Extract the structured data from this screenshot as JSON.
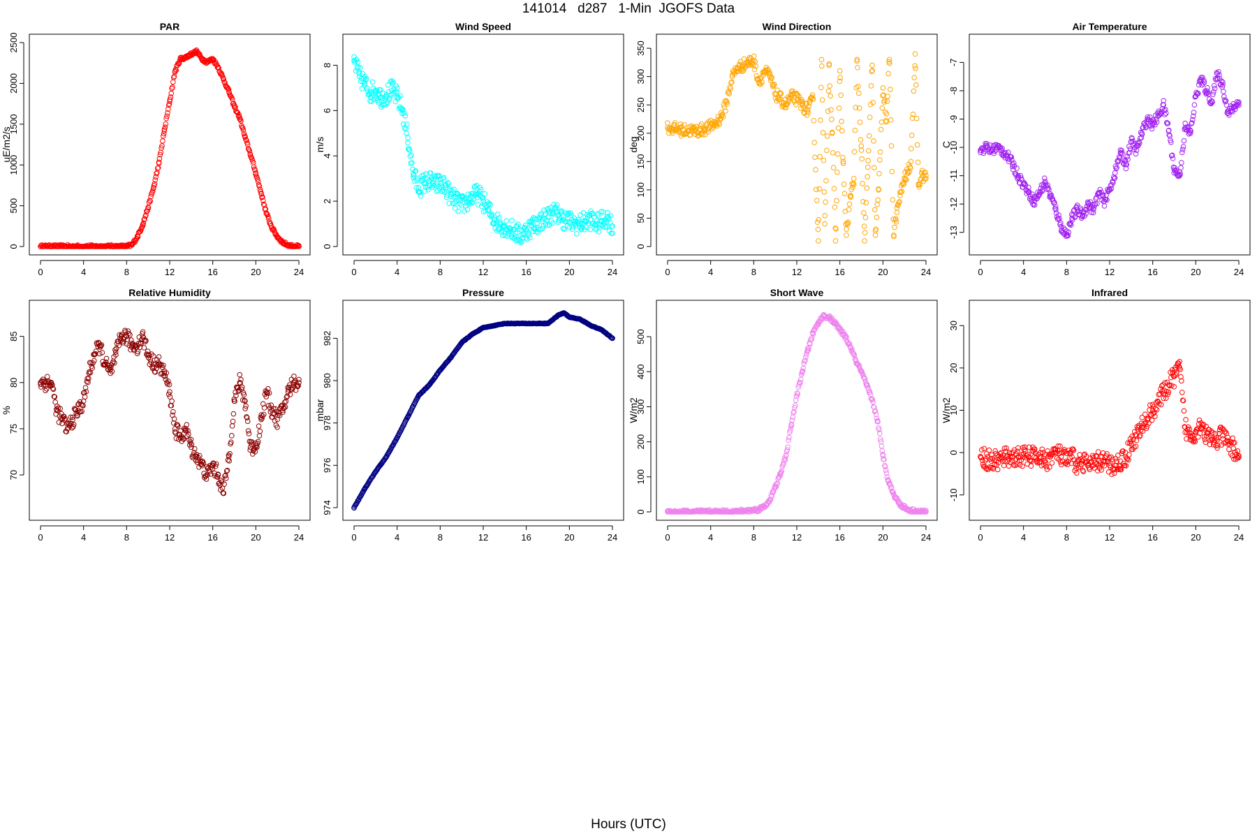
{
  "figure": {
    "title": "141014   d287   1-Min  JGOFS Data",
    "xlabel": "Hours (UTC)"
  },
  "chart_data": [
    {
      "type": "scatter",
      "title": "PAR",
      "ylabel": "uE/m2/s",
      "color": "#ff0000",
      "xlim": [
        0,
        24
      ],
      "ylim": [
        0,
        2500
      ],
      "xticks": [
        0,
        4,
        8,
        12,
        16,
        20,
        24
      ],
      "yticks": [
        0,
        500,
        1000,
        1500,
        2000,
        2500
      ],
      "series": [
        {
          "x": [
            0,
            2,
            4,
            6,
            8,
            8.5,
            9,
            9.5,
            10,
            10.5,
            11,
            11.5,
            12,
            12.5,
            13,
            13.5,
            14,
            14.5,
            15,
            15.5,
            16,
            16.5,
            17,
            17.5,
            18,
            18.5,
            19,
            19.5,
            20,
            20.5,
            21,
            21.5,
            22,
            22.5,
            23,
            23.5,
            24
          ],
          "y": [
            0,
            0,
            0,
            0,
            0,
            20,
            120,
            270,
            480,
            720,
            1020,
            1420,
            1780,
            2150,
            2300,
            2320,
            2360,
            2390,
            2300,
            2260,
            2300,
            2200,
            2050,
            1900,
            1720,
            1580,
            1340,
            1130,
            900,
            650,
            400,
            230,
            120,
            50,
            15,
            2,
            0
          ]
        }
      ]
    },
    {
      "type": "scatter",
      "title": "Wind Speed",
      "ylabel": "m/s",
      "color": "#00ffff",
      "xlim": [
        0,
        24
      ],
      "ylim": [
        0,
        9
      ],
      "xticks": [
        0,
        4,
        8,
        12,
        16,
        20,
        24
      ],
      "yticks": [
        0,
        2,
        4,
        6,
        8
      ],
      "series": [
        {
          "x": [
            0,
            0.5,
            1,
            1.5,
            2,
            2.5,
            3,
            3.5,
            4,
            4.5,
            5,
            5.5,
            6,
            6.5,
            7,
            7.5,
            8,
            8.5,
            9,
            9.5,
            10,
            10.5,
            11,
            11.5,
            12,
            12.5,
            13,
            13.5,
            14,
            14.5,
            15,
            15.5,
            16,
            16.5,
            17,
            17.5,
            18,
            18.5,
            19,
            19.5,
            20,
            20.5,
            21,
            21.5,
            22,
            22.5,
            23,
            23.5,
            24
          ],
          "y": [
            8.2,
            7.5,
            7.2,
            6.8,
            6.9,
            6.6,
            6.7,
            6.9,
            6.6,
            6.0,
            4.8,
            3.2,
            2.6,
            2.8,
            2.9,
            2.7,
            2.8,
            2.6,
            2.2,
            2.0,
            1.8,
            2.0,
            2.2,
            2.3,
            2.0,
            1.6,
            1.2,
            1.0,
            0.9,
            0.8,
            0.6,
            0.5,
            0.7,
            0.9,
            1.0,
            1.2,
            1.3,
            1.5,
            1.4,
            1.2,
            1.1,
            1.0,
            1.0,
            1.1,
            1.2,
            1.0,
            1.1,
            1.3,
            0.9
          ]
        }
      ]
    },
    {
      "type": "scatter",
      "title": "Wind Direction",
      "ylabel": "deg",
      "color": "#ffa500",
      "xlim": [
        0,
        24
      ],
      "ylim": [
        0,
        360
      ],
      "xticks": [
        0,
        4,
        8,
        12,
        16,
        20,
        24
      ],
      "yticks": [
        0,
        50,
        100,
        150,
        200,
        250,
        300,
        350
      ],
      "series": [
        {
          "x": [
            0,
            0.5,
            1,
            1.5,
            2,
            2.5,
            3,
            3.5,
            4,
            4.5,
            5,
            5.5,
            6,
            6.5,
            7,
            7.5,
            8,
            8.5,
            9,
            9.5,
            10,
            10.5,
            11,
            11.5,
            12,
            12.5,
            13,
            13.5,
            14,
            14.3,
            14.6,
            15,
            15.3,
            15.6,
            16,
            16.3,
            16.6,
            17,
            17.3,
            17.6,
            18,
            18.3,
            18.6,
            19,
            19.3,
            19.6,
            20,
            20.3,
            20.6,
            21,
            21.3,
            21.6,
            22,
            22.3,
            22.6,
            23,
            23.3,
            23.6,
            24
          ],
          "y": [
            210,
            208,
            207,
            205,
            205,
            204,
            205,
            208,
            212,
            218,
            230,
            255,
            300,
            315,
            320,
            325,
            328,
            290,
            310,
            300,
            270,
            260,
            250,
            265,
            260,
            250,
            240,
            260,
            10,
            330,
            40,
            320,
            200,
            10,
            310,
            150,
            20,
            90,
            120,
            330,
            170,
            10,
            140,
            320,
            20,
            100,
            280,
            220,
            330,
            20,
            60,
            90,
            120,
            130,
            150,
            340,
            110,
            130,
            120
          ]
        }
      ]
    },
    {
      "type": "scatter",
      "title": "Air Temperature",
      "ylabel": "C",
      "color": "#a020f0",
      "xlim": [
        0,
        24
      ],
      "ylim": [
        -13.5,
        -6.3
      ],
      "xticks": [
        0,
        4,
        8,
        12,
        16,
        20,
        24
      ],
      "yticks": [
        -13,
        -12,
        -11,
        -10,
        -9,
        -8,
        -7
      ],
      "series": [
        {
          "x": [
            0,
            0.5,
            1,
            1.5,
            2,
            2.5,
            3,
            3.5,
            4,
            4.5,
            5,
            5.5,
            6,
            6.5,
            7,
            7.5,
            8,
            8.5,
            9,
            9.5,
            10,
            10.5,
            11,
            11.5,
            12,
            12.5,
            13,
            13.5,
            14,
            14.5,
            15,
            15.5,
            16,
            16.5,
            17,
            17.5,
            18,
            18.5,
            19,
            19.5,
            20,
            20.5,
            21,
            21.5,
            22,
            22.5,
            23,
            23.5,
            24
          ],
          "y": [
            -10.1,
            -10.0,
            -10.1,
            -10.0,
            -10.1,
            -10.3,
            -10.6,
            -11.0,
            -11.3,
            -11.6,
            -11.9,
            -11.6,
            -11.2,
            -11.7,
            -12.2,
            -12.8,
            -13.1,
            -12.5,
            -12.2,
            -12.4,
            -12.0,
            -12.2,
            -11.6,
            -11.9,
            -11.5,
            -10.9,
            -10.2,
            -10.6,
            -9.8,
            -10.1,
            -9.5,
            -9.0,
            -9.2,
            -8.9,
            -8.5,
            -9.4,
            -10.8,
            -11.0,
            -9.3,
            -9.5,
            -8.2,
            -7.6,
            -8.0,
            -8.4,
            -7.4,
            -7.8,
            -8.8,
            -8.6,
            -8.4
          ]
        }
      ]
    },
    {
      "type": "scatter",
      "title": "Relative Humidity",
      "ylabel": "%",
      "color": "#8b0000",
      "xlim": [
        0,
        24
      ],
      "ylim": [
        66,
        88
      ],
      "xticks": [
        0,
        4,
        8,
        12,
        16,
        20,
        24
      ],
      "yticks": [
        70,
        75,
        80,
        85
      ],
      "series": [
        {
          "x": [
            0,
            0.5,
            1,
            1.5,
            2,
            2.5,
            3,
            3.5,
            4,
            4.5,
            5,
            5.5,
            6,
            6.5,
            7,
            7.5,
            8,
            8.5,
            9,
            9.5,
            10,
            10.5,
            11,
            11.5,
            12,
            12.5,
            13,
            13.5,
            14,
            14.5,
            15,
            15.5,
            16,
            16.5,
            17,
            17.5,
            18,
            18.5,
            19,
            19.5,
            20,
            20.5,
            21,
            21.5,
            22,
            22.5,
            23,
            23.5,
            24
          ],
          "y": [
            80,
            80,
            80,
            77,
            76,
            75,
            76,
            77,
            78,
            81,
            83,
            84,
            82,
            81,
            83,
            85,
            85,
            84,
            84,
            85,
            83,
            82,
            82,
            81,
            79,
            75,
            74,
            75,
            73,
            72,
            71,
            70,
            71,
            70,
            68,
            72,
            78,
            80,
            78,
            73,
            73,
            76,
            79,
            77,
            76,
            77,
            79,
            80,
            80
          ]
        }
      ]
    },
    {
      "type": "scatter",
      "title": "Pressure",
      "ylabel": "mbar",
      "color": "#000080",
      "xlim": [
        0,
        24
      ],
      "ylim": [
        973.8,
        983.4
      ],
      "xticks": [
        0,
        4,
        8,
        12,
        16,
        20,
        24
      ],
      "yticks": [
        974,
        976,
        978,
        980,
        982
      ],
      "series": [
        {
          "x": [
            0,
            1,
            2,
            3,
            4,
            5,
            6,
            7,
            8,
            9,
            10,
            11,
            12,
            13,
            14,
            15,
            16,
            17,
            18,
            19,
            19.5,
            20,
            21,
            22,
            23,
            24
          ],
          "y": [
            974.0,
            974.9,
            975.7,
            976.4,
            977.3,
            978.3,
            979.3,
            979.8,
            980.5,
            981.1,
            981.8,
            982.2,
            982.5,
            982.6,
            982.7,
            982.7,
            982.7,
            982.7,
            982.7,
            983.1,
            983.2,
            983.0,
            982.9,
            982.6,
            982.4,
            982.0
          ]
        }
      ]
    },
    {
      "type": "scatter",
      "title": "Short Wave",
      "ylabel": "W/m2",
      "color": "#ee82ee",
      "xlim": [
        0,
        24
      ],
      "ylim": [
        0,
        580
      ],
      "xticks": [
        0,
        4,
        8,
        12,
        16,
        20,
        24
      ],
      "yticks": [
        0,
        100,
        200,
        300,
        400,
        500
      ],
      "series": [
        {
          "x": [
            0,
            2,
            4,
            6,
            7,
            8,
            8.5,
            9,
            9.5,
            10,
            10.5,
            11,
            11.5,
            12,
            12.5,
            13,
            13.5,
            14,
            14.5,
            15,
            15.5,
            16,
            16.5,
            17,
            17.5,
            18,
            18.5,
            19,
            19.5,
            20,
            20.5,
            21,
            21.5,
            22,
            22.5,
            23,
            23.5,
            24
          ],
          "y": [
            0,
            0,
            0,
            0,
            2,
            5,
            8,
            15,
            35,
            70,
            110,
            160,
            250,
            330,
            400,
            460,
            510,
            540,
            560,
            555,
            540,
            520,
            500,
            470,
            430,
            400,
            360,
            320,
            260,
            160,
            90,
            50,
            25,
            12,
            5,
            2,
            0,
            0
          ]
        }
      ]
    },
    {
      "type": "scatter",
      "title": "Infrared",
      "ylabel": "W/m2",
      "color": "#ff0000",
      "xlim": [
        0,
        24
      ],
      "ylim": [
        -14,
        34
      ],
      "xticks": [
        0,
        4,
        8,
        12,
        16,
        20,
        24
      ],
      "yticks": [
        -10,
        0,
        10,
        20,
        30
      ],
      "series": [
        {
          "x": [
            0,
            0.5,
            1,
            1.5,
            2,
            2.5,
            3,
            3.5,
            4,
            4.5,
            5,
            5.5,
            6,
            6.5,
            7,
            7.5,
            8,
            8.5,
            9,
            9.5,
            10,
            10.5,
            11,
            11.5,
            12,
            12.5,
            13,
            13.5,
            14,
            14.5,
            15,
            15.5,
            16,
            16.5,
            17,
            17.5,
            18,
            18.5,
            19,
            19.5,
            20,
            20.5,
            21,
            21.5,
            22,
            22.5,
            23,
            23.5,
            24
          ],
          "y": [
            -1,
            -1.5,
            -2,
            -2,
            -1.5,
            -1,
            -1,
            -1,
            -1,
            -1,
            -1,
            -1,
            -2,
            -1,
            0,
            -1,
            -2,
            -1,
            -3,
            -2,
            -3,
            -3,
            -2,
            -2,
            -3,
            -3,
            -2,
            -1,
            2,
            4,
            6,
            8,
            10,
            12,
            14,
            16,
            18,
            20,
            6,
            4,
            5,
            7,
            4,
            3,
            3,
            4,
            2,
            1,
            -1
          ]
        }
      ]
    }
  ]
}
